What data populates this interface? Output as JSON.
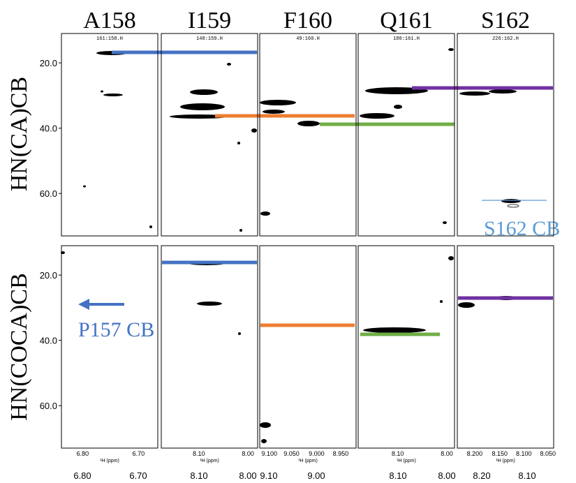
{
  "columns": [
    "A158",
    "I159",
    "F160",
    "Q161",
    "S162"
  ],
  "rows": [
    {
      "label": "HN(CA)CB",
      "strips": [
        "161:158.H",
        "148:159.H",
        "49:160.H",
        "180:161.H",
        "226:162.H"
      ]
    },
    {
      "label": "HN(COCA)CB"
    }
  ],
  "ylim": [
    11,
    73
  ],
  "yticks": [
    {
      "value": 20,
      "label": "20.0"
    },
    {
      "value": 40,
      "label": "40.0"
    },
    {
      "value": 60,
      "label": "60.0"
    }
  ],
  "strip_xticks": [
    [
      "6.80",
      "6.70"
    ],
    [
      "8.10",
      "8.00"
    ],
    [
      "9.100",
      "9.050",
      "9.000",
      "8.950"
    ],
    [
      "8.10",
      "8.00"
    ],
    [
      "8.200",
      "8.150",
      "8.100",
      "8.050"
    ]
  ],
  "x_label": "¹H (ppm)",
  "bottom_labels": [
    "6.80",
    "6.70",
    "8.10",
    "8.00",
    "9.10",
    "9.00",
    "8.10",
    "8.00",
    "8.20",
    "8.10"
  ],
  "annotations": [
    "P157 CB",
    "S162 CB"
  ]
}
